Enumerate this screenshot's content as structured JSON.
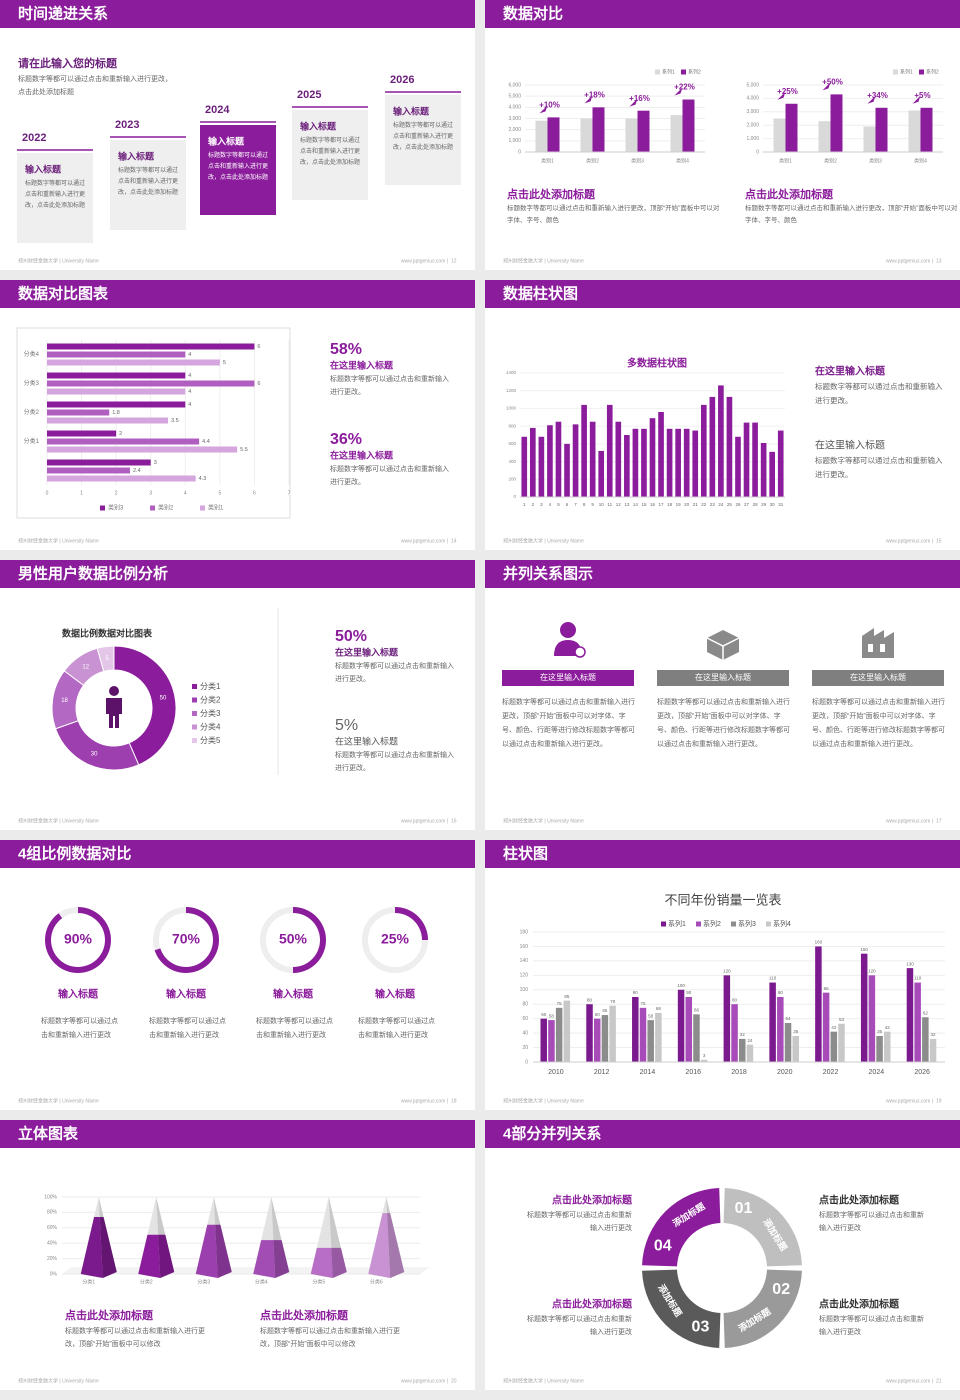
{
  "footer": {
    "school": "郑州财经金融大学 | University Name",
    "site": "www.pptgenius.com |"
  },
  "slides": [
    {
      "title": "时间递进关系",
      "page": 12,
      "heading": "请在此输入您的标题",
      "intro": "标题数字等都可以通过点击和重新输入进行更改，点击此处添加标题",
      "steps": [
        {
          "year": "2022",
          "label": "输入标题",
          "text": "标题数字等都可以通过点击和重新输入进行更改，点击此处添加标题",
          "fill": "#efefef",
          "label_color": "#6b1f7b",
          "text_color": "#666666"
        },
        {
          "year": "2023",
          "label": "输入标题",
          "text": "标题数字等都可以通过点击和重新输入进行更改，点击此处添加标题",
          "fill": "#efefef",
          "label_color": "#6b1f7b",
          "text_color": "#666666"
        },
        {
          "year": "2024",
          "label": "输入标题",
          "text": "标题数字等都可以通过点击和重新输入进行更改，点击此处添加标题",
          "fill": "#8b1c9b",
          "label_color": "#ffffff",
          "text_color": "#ffffff"
        },
        {
          "year": "2025",
          "label": "输入标题",
          "text": "标题数字等都可以通过点击和重新输入进行更改，点击此处添加标题",
          "fill": "#efefef",
          "label_color": "#6b1f7b",
          "text_color": "#666666"
        },
        {
          "year": "2026",
          "label": "输入标题",
          "text": "标题数字等都可以通过点击和重新输入进行更改，点击此处添加标题",
          "fill": "#efefef",
          "label_color": "#6b1f7b",
          "text_color": "#666666"
        }
      ]
    },
    {
      "title": "数据对比",
      "page": 13,
      "panels": [
        {
          "chart": {
            "type": "bar",
            "categories": [
              "类别1",
              "类别2",
              "类别3",
              "类别4"
            ],
            "series": [
              {
                "name": "系列1",
                "color": "#d9d9d9",
                "values": [
                  2800,
                  3000,
                  3000,
                  3300
                ]
              },
              {
                "name": "系列2",
                "color": "#8b1c9b",
                "values": [
                  3100,
                  4000,
                  3700,
                  4700
                ]
              }
            ],
            "annotations": [
              "+10%",
              "+18%",
              "+16%",
              "+22%"
            ],
            "ylim": [
              0,
              6000
            ],
            "yticks": [
              0,
              {
                "value": 1000,
                "label": "1,000"
              },
              {
                "value": 2000,
                "label": "2,000"
              },
              {
                "value": 3000,
                "label": "3,000"
              },
              {
                "value": 4000,
                "label": "4,000"
              },
              {
                "value": 5000,
                "label": "5,000"
              },
              {
                "value": 6000,
                "label": "6,000"
              }
            ]
          },
          "heading": "点击此处添加标题",
          "text": "标题数字等都可以通过点击和重新输入进行更改，顶部“开始”面板中可以对字体、字号、颜色"
        },
        {
          "chart": {
            "type": "bar",
            "categories": [
              "类别1",
              "类别2",
              "类别3",
              "类别4"
            ],
            "series": [
              {
                "name": "系列1",
                "color": "#d9d9d9",
                "values": [
                  2500,
                  2300,
                  1900,
                  3100
                ]
              },
              {
                "name": "系列2",
                "color": "#8b1c9b",
                "values": [
                  3600,
                  4300,
                  3300,
                  3300
                ]
              }
            ],
            "annotations": [
              "+25%",
              "+50%",
              "+34%",
              "+5%"
            ],
            "ylim": [
              0,
              5000
            ],
            "yticks": [
              0,
              {
                "value": 1000,
                "label": "1,000"
              },
              {
                "value": 2000,
                "label": "2,000"
              },
              {
                "value": 3000,
                "label": "3,000"
              },
              {
                "value": 4000,
                "label": "4,000"
              },
              {
                "value": 5000,
                "label": "5,000"
              }
            ]
          },
          "heading": "点击此处添加标题",
          "text": "标题数字等都可以通过点击和重新输入进行更改，顶部“开始”面板中可以对字体、字号、颜色"
        }
      ]
    },
    {
      "title": "数据对比图表",
      "page": 14,
      "chart": {
        "type": "barh",
        "categories": [
          null,
          "分类1",
          "分类2",
          "分类3",
          "分类4"
        ],
        "series": [
          {
            "name": "类别3",
            "color": "#8b1c9b",
            "values": [
              3,
              2,
              4,
              4,
              6
            ]
          },
          {
            "name": "类别2",
            "color": "#b05fc0",
            "values": [
              2.4,
              4.4,
              1.8,
              6,
              4
            ]
          },
          {
            "name": "类别1",
            "color": "#d5a6de",
            "values": [
              4.3,
              5.5,
              3.5,
              4,
              5
            ]
          }
        ],
        "xlim": [
          0,
          7
        ],
        "xticks": [
          0,
          1,
          2,
          3,
          4,
          5,
          6,
          7
        ]
      },
      "items": [
        {
          "percent": "58%",
          "label": "在这里输入标题",
          "text": "标题数字等都可以通过点击和重新输入进行更改。"
        },
        {
          "percent": "36%",
          "label": "在这里输入标题",
          "text": "标题数字等都可以通过点击和重新输入进行更改。"
        }
      ]
    },
    {
      "title": "数据柱状图",
      "page": 15,
      "chart": {
        "type": "bar",
        "title": "多数据柱状图",
        "categories": [
          "1",
          "2",
          "3",
          "4",
          "5",
          "6",
          "7",
          "8",
          "9",
          "10",
          "11",
          "12",
          "13",
          "14",
          "15",
          "16",
          "17",
          "18",
          "19",
          "20",
          "21",
          "22",
          "23",
          "24",
          "25",
          "26",
          "27",
          "28",
          "29",
          "30",
          "31"
        ],
        "values": [
          680,
          780,
          680,
          810,
          850,
          600,
          820,
          1040,
          850,
          520,
          1040,
          850,
          700,
          770,
          770,
          890,
          960,
          770,
          770,
          770,
          750,
          1040,
          1130,
          1260,
          1130,
          680,
          840,
          840,
          610,
          510,
          750
        ],
        "color": "#8b1c9b",
        "ylim": [
          0,
          1400
        ],
        "yticks": [
          0,
          200,
          400,
          600,
          800,
          1000,
          1200,
          1400
        ]
      },
      "items": [
        {
          "label": "在这里输入标题",
          "text": "标题数字等都可以通过点击和重新输入进行更改。",
          "color": "#7b1f8c"
        },
        {
          "label": "在这里输入标题",
          "text": "标题数字等都可以通过点击和重新输入进行更改。",
          "color": "#555555"
        }
      ]
    },
    {
      "title": "男性用户数据比例分析",
      "page": 16,
      "chart": {
        "type": "pie",
        "title": "数据比例数据对比图表",
        "categories": [
          "分类1",
          "分类2",
          "分类3",
          "分类4",
          "分类5"
        ],
        "values": [
          50,
          30,
          18,
          12,
          5
        ],
        "colors": [
          "#8b1c9b",
          "#9e3fb0",
          "#b368c3",
          "#c993d3",
          "#e3c6e8"
        ]
      },
      "items": [
        {
          "percent": "50%",
          "label": "在这里输入标题",
          "text": "标题数字等都可以通过点击和重新输入进行更改。"
        },
        {
          "percent": "5%",
          "label": "在这里输入标题",
          "text": "标题数字等都可以通过点击和重新输入进行更改。"
        }
      ]
    },
    {
      "title": "并列关系图示",
      "page": 17,
      "columns": [
        {
          "label": "在这里输入标题",
          "color": "#8b1c9b",
          "text": "标题数字等都可以通过点击和重新输入进行更改，顶部“开始”面板中可以对字体、字号、颜色、行距等进行修改标题数字等都可以通过点击和重新输入进行更改。"
        },
        {
          "label": "在这里输入标题",
          "color": "#7f7f7f",
          "text": "标题数字等都可以通过点击和重新输入进行更改，顶部“开始”面板中可以对字体、字号、颜色、行距等进行修改标题数字等都可以通过点击和重新输入进行更改。"
        },
        {
          "label": "在这里输入标题",
          "color": "#7f7f7f",
          "text": "标题数字等都可以通过点击和重新输入进行更改，顶部“开始”面板中可以对字体、字号、颜色、行距等进行修改标题数字等都可以通过点击和重新输入进行更改。"
        }
      ]
    },
    {
      "title": "4组比例数据对比",
      "page": 18,
      "chart": {
        "type": "ring",
        "ylim": [
          0,
          100
        ],
        "values": [
          90,
          70,
          50,
          25
        ],
        "value_labels": [
          "90%",
          "70%",
          "50%",
          "25%"
        ],
        "color": "#8b1c9b"
      },
      "items": [
        {
          "label": "输入标题",
          "text": "标题数字等都可以通过点击和重新输入进行更改"
        },
        {
          "label": "输入标题",
          "text": "标题数字等都可以通过点击和重新输入进行更改"
        },
        {
          "label": "输入标题",
          "text": "标题数字等都可以通过点击和重新输入进行更改"
        },
        {
          "label": "输入标题",
          "text": "标题数字等都可以通过点击和重新输入进行更改"
        }
      ]
    },
    {
      "title": "柱状图",
      "page": 19,
      "chart": {
        "type": "bar",
        "title": "不同年份销量一览表",
        "categories": [
          "2010",
          "2012",
          "2014",
          "2016",
          "2018",
          "2020",
          "2022",
          "2024",
          "2026"
        ],
        "series": [
          {
            "name": "系列1",
            "color": "#7b1a8e",
            "values": [
              60,
              80,
              90,
              100,
              120,
              110,
              160,
              150,
              130
            ]
          },
          {
            "name": "系列2",
            "color": "#a64bb8",
            "values": [
              58,
              60,
              75,
              90,
              80,
              90,
              96,
              120,
              110
            ]
          },
          {
            "name": "系列3",
            "color": "#8c8c8c",
            "values": [
              75,
              65,
              58,
              66,
              32,
              54,
              42,
              36,
              62
            ]
          },
          {
            "name": "系列4",
            "color": "#c8c8c8",
            "values": [
              85,
              78,
              68,
              3,
              24,
              36,
              53,
              42,
              32
            ]
          }
        ],
        "ylim": [
          0,
          180
        ],
        "yticks": [
          0,
          20,
          40,
          60,
          80,
          100,
          120,
          140,
          160,
          180
        ]
      }
    },
    {
      "title": "立体图表",
      "page": 20,
      "chart": {
        "type": "pyramid",
        "categories": [
          "分类1",
          "分类2",
          "分类3",
          "分类4",
          "分类5",
          "分类6"
        ],
        "values": [
          74,
          51,
          64,
          44,
          34,
          79
        ],
        "colors": [
          "#7a1a8c",
          "#8b1c9b",
          "#9b3fae",
          "#a24db4",
          "#b86dc6",
          "#c993d3"
        ],
        "ylim": [
          0,
          100
        ],
        "yticks": [
          {
            "value": 0,
            "label": "0%"
          },
          {
            "value": 20,
            "label": "20%"
          },
          {
            "value": 40,
            "label": "40%"
          },
          {
            "value": 60,
            "label": "60%"
          },
          {
            "value": 80,
            "label": "80%"
          },
          {
            "value": 100,
            "label": "100%"
          }
        ]
      },
      "items": [
        {
          "heading": "点击此处添加标题",
          "text": "标题数字等都可以通过点击和重新输入进行更改，顶部“开始”面板中可以修改"
        },
        {
          "heading": "点击此处添加标题",
          "text": "标题数字等都可以通过点击和重新输入进行更改，顶部“开始”面板中可以修改"
        }
      ]
    },
    {
      "title": "4部分并列关系",
      "page": 21,
      "segments": [
        {
          "number": "01",
          "label": "添加标题",
          "color": "#bfbfbf"
        },
        {
          "number": "02",
          "label": "添加标题",
          "color": "#9a9a9a"
        },
        {
          "number": "03",
          "label": "添加标题",
          "color": "#5a5a5a"
        },
        {
          "number": "04",
          "label": "添加标题",
          "color": "#8b1c9b"
        }
      ],
      "blocks": [
        {
          "heading": "点击此处添加标题",
          "text": "标题数字等都可以通过点击和重新输入进行更改"
        },
        {
          "heading": "点击此处添加标题",
          "text": "标题数字等都可以通过点击和重新输入进行更改"
        },
        {
          "heading": "点击此处添加标题",
          "text": "标题数字等都可以通过点击和重新输入进行更改"
        },
        {
          "heading": "点击此处添加标题",
          "text": "标题数字等都可以通过点击和重新输入进行更改"
        }
      ]
    }
  ]
}
